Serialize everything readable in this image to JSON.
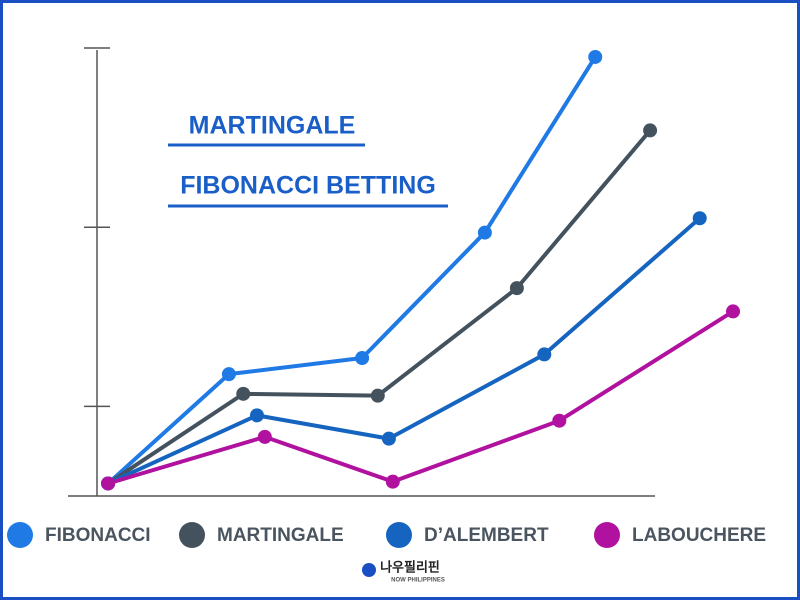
{
  "chart_data": {
    "type": "line",
    "annotations": [
      "MARTINGALE",
      "FIBONACCI BETTING"
    ],
    "xlim": [
      0,
      10
    ],
    "ylim": [
      0,
      2.5
    ],
    "yticks": [
      0.5,
      1.5,
      2.5
    ],
    "series": [
      {
        "name": "FIBONACCI",
        "color": "#1f7ae6",
        "x": [
          0.17,
          2.02,
          4.06,
          5.94,
          7.63
        ],
        "values": [
          0.07,
          0.68,
          0.77,
          1.47,
          2.45
        ]
      },
      {
        "name": "MARTINGALE",
        "color": "#44525e",
        "x": [
          0.17,
          2.24,
          4.3,
          6.43,
          8.47
        ],
        "values": [
          0.07,
          0.57,
          0.56,
          1.16,
          2.04
        ]
      },
      {
        "name": "D’ALEMBERT",
        "color": "#1565c0",
        "x": [
          0.17,
          2.45,
          4.47,
          6.85,
          9.23
        ],
        "values": [
          0.07,
          0.45,
          0.32,
          0.79,
          1.55
        ]
      },
      {
        "name": "LABOUCHERE",
        "color": "#b0119f",
        "x": [
          0.17,
          2.57,
          4.53,
          7.08,
          9.74
        ],
        "values": [
          0.07,
          0.33,
          0.08,
          0.42,
          1.03
        ]
      }
    ],
    "logo": {
      "title": "나우필리핀",
      "subtitle": "NOW PHILIPPINES"
    }
  }
}
